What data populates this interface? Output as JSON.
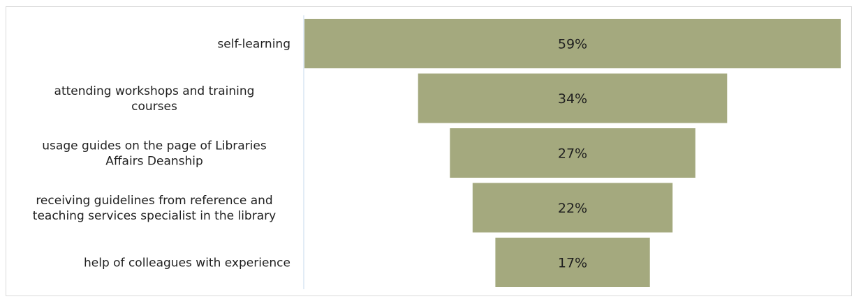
{
  "chart_data": {
    "type": "bar",
    "subtype": "funnel",
    "title": "",
    "categories": [
      [
        "self-learning"
      ],
      [
        "attending workshops and training",
        "courses"
      ],
      [
        "usage guides on the page of Libraries",
        "Affairs Deanship"
      ],
      [
        "receiving guidelines from reference and",
        "teaching services specialist in the library"
      ],
      [
        "help of colleagues with experience"
      ]
    ],
    "values": [
      59,
      34,
      27,
      22,
      17
    ],
    "value_labels": [
      "59%",
      "34%",
      "27%",
      "22%",
      "17%"
    ],
    "unit": "%",
    "bar_color": "#a4a97e",
    "axis_color": "#c6d9ec",
    "grid": false,
    "legend": "none"
  }
}
